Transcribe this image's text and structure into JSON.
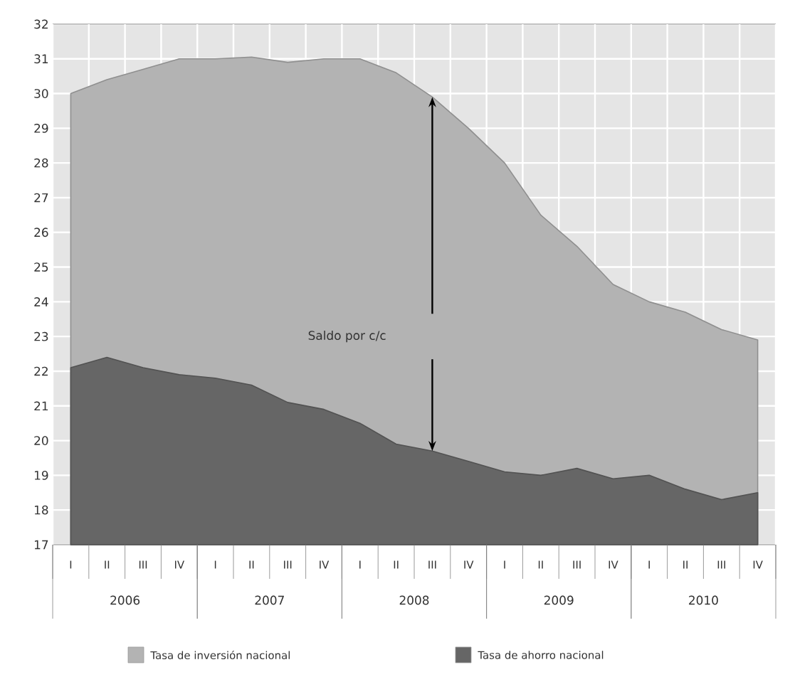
{
  "chart_data": {
    "type": "area",
    "categories": [
      "I",
      "II",
      "III",
      "IV",
      "I",
      "II",
      "III",
      "IV",
      "I",
      "II",
      "III",
      "IV",
      "I",
      "II",
      "III",
      "IV",
      "I",
      "II",
      "III",
      "IV"
    ],
    "series": [
      {
        "name": "Tasa de inversión nacional",
        "color": "#b3b3b3",
        "values": [
          30.0,
          30.4,
          30.7,
          31.0,
          31.0,
          31.05,
          30.9,
          31.0,
          31.0,
          30.6,
          29.9,
          29.0,
          28.0,
          26.5,
          25.6,
          24.5,
          24.0,
          23.7,
          23.2,
          22.9
        ]
      },
      {
        "name": "Tasa de ahorro nacional",
        "color": "#666666",
        "values": [
          22.1,
          22.4,
          22.1,
          21.9,
          21.8,
          21.6,
          21.1,
          20.9,
          20.5,
          19.9,
          19.7,
          19.4,
          19.1,
          19.0,
          19.2,
          18.9,
          19.0,
          18.6,
          18.3,
          18.5
        ]
      }
    ],
    "ylim": [
      17,
      32
    ],
    "yticks": [
      17,
      18,
      19,
      20,
      21,
      22,
      23,
      24,
      25,
      26,
      27,
      28,
      29,
      30,
      31,
      32
    ],
    "grid": true,
    "legend": "bottom",
    "annotations": [
      "Saldo por c/c",
      "2006",
      "2007",
      "2008",
      "2009",
      "2010"
    ]
  }
}
